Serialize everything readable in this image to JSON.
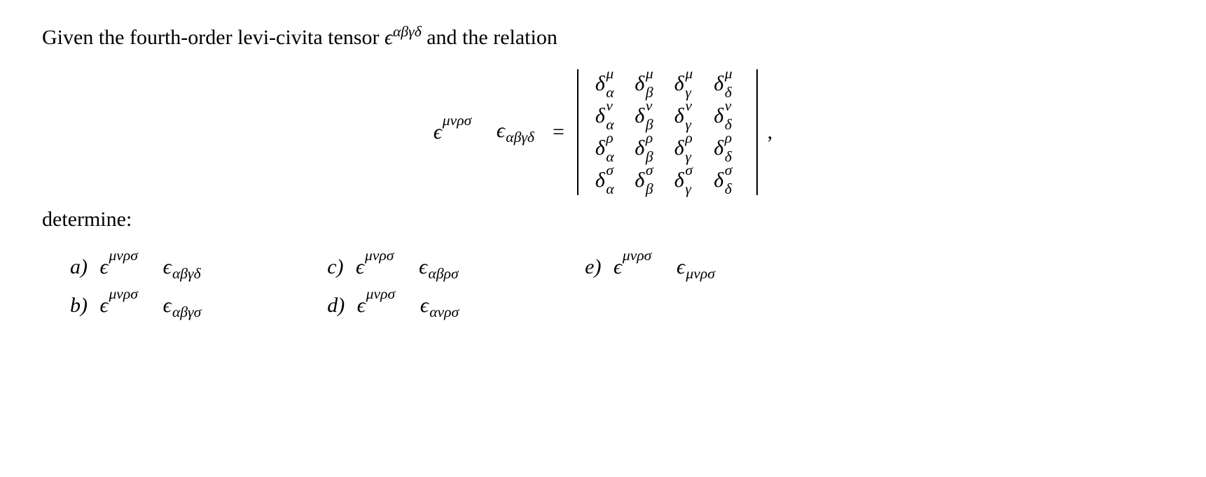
{
  "intro": {
    "text_before": "Given the fourth-order levi-civita tensor ",
    "symbol": "ϵ",
    "superscript": "αβγδ",
    "text_after": " and the relation"
  },
  "equation": {
    "lhs": {
      "epsilon1": "ϵ",
      "sup1": "μνρσ",
      "epsilon2": "ϵ",
      "sub2": "αβγδ"
    },
    "equals": "=",
    "matrix_rows_sup": [
      "μ",
      "ν",
      "ρ",
      "σ"
    ],
    "matrix_cols_sub": [
      "α",
      "β",
      "γ",
      "δ"
    ],
    "delta": "δ",
    "comma": ","
  },
  "determine": "determine:",
  "items": {
    "a": {
      "label": "a)",
      "e1": "ϵ",
      "sup": "μνρσ",
      "e2": "ϵ",
      "sub": "αβγδ"
    },
    "b": {
      "label": "b)",
      "e1": "ϵ",
      "sup": "μνρσ",
      "e2": "ϵ",
      "sub": "αβγσ"
    },
    "c": {
      "label": "c)",
      "e1": "ϵ",
      "sup": "μνρσ",
      "e2": "ϵ",
      "sub": "αβρσ"
    },
    "d": {
      "label": "d)",
      "e1": "ϵ",
      "sup": "μνρσ",
      "e2": "ϵ",
      "sub": "ανρσ"
    },
    "e": {
      "label": "e)",
      "e1": "ϵ",
      "sup": "μνρσ",
      "e2": "ϵ",
      "sub": "μνρσ"
    }
  },
  "style": {
    "font_family": "Times New Roman",
    "font_size_pt": 22,
    "text_color": "#000000",
    "background_color": "#ffffff"
  }
}
